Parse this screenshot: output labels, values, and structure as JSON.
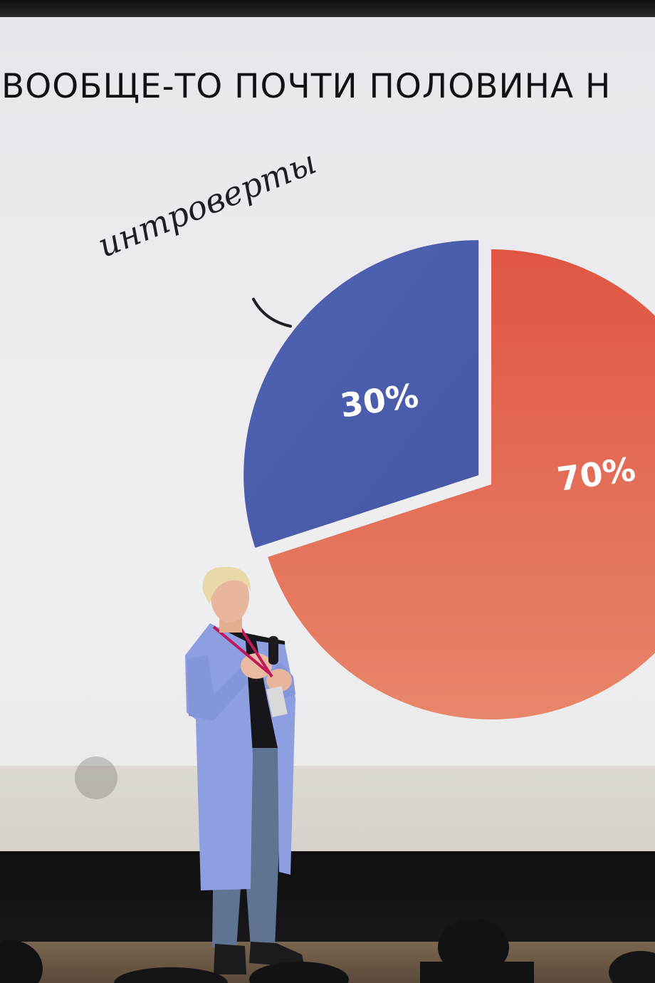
{
  "slide": {
    "title": "ВООБЩЕ-ТО ПОЧТИ ПОЛОВИНА Н",
    "handwritten_label": "интроверты"
  },
  "chart_data": {
    "type": "pie",
    "title": "",
    "slices": [
      {
        "label": "30%",
        "value": 30,
        "color": "#4b5fae"
      },
      {
        "label": "70%",
        "value": 70,
        "color": "#e2654f"
      }
    ]
  },
  "colors": {
    "screen": "#ececf0",
    "cardigan": "#8d9fe0",
    "stage": "#121214"
  }
}
